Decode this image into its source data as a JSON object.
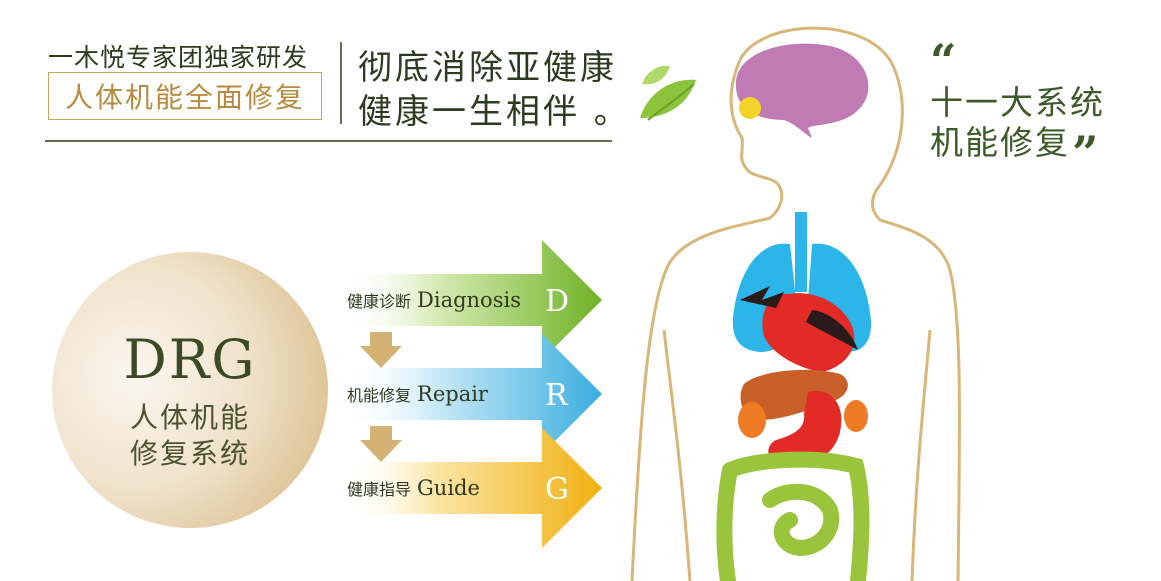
{
  "header": {
    "subtitle": "一木悦专家团独家研发",
    "boxed_label": "人体机能全面修复",
    "slogan_line1": "彻底消除亚健康",
    "slogan_line2": "健康一生相伴 。"
  },
  "quote": {
    "open_mark": "“",
    "line1": "十一大系统",
    "line2": "机能修复",
    "close_mark": "”"
  },
  "drg_circle": {
    "title": "DRG",
    "line1": "人体机能",
    "line2": "修复系统"
  },
  "steps": [
    {
      "cn": "健康诊断",
      "en": "Diagnosis",
      "letter": "D",
      "color": "#7dbb2e"
    },
    {
      "cn": "机能修复",
      "en": "Repair",
      "letter": "R",
      "color": "#4db6e4"
    },
    {
      "cn": "健康指导",
      "en": "Guide",
      "letter": "G",
      "color": "#f2b615"
    }
  ],
  "colors": {
    "accent_gold": "#c9a25b",
    "text_dark_green": "#3d5a28",
    "body_outline": "#d8b67a",
    "brain": "#c07ab4",
    "lungs": "#2cb5e8",
    "heart": "#e22a27",
    "liver": "#c9602a",
    "intestine": "#9ac43c"
  },
  "icons": [
    "tea-leaf-icon",
    "down-arrow-icon",
    "human-anatomy-illustration"
  ]
}
